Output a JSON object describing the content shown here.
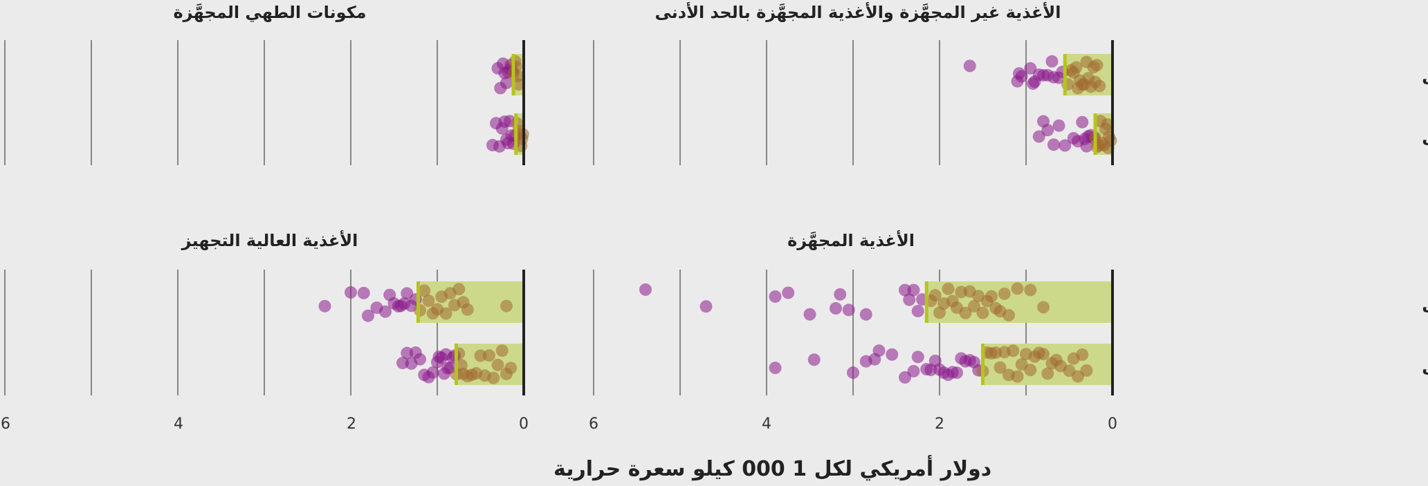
{
  "chart_data": {
    "type": "scatter",
    "x_axis_label": "دولار أمريكي لكل 1 000 كيلو سعرة حرارية",
    "x_ticks": [
      "6",
      "4",
      "2",
      "0"
    ],
    "rows": [
      "البلدان المرتفعة الدخل",
      "البلدان المنخفضة والمتوسطة الدخل"
    ],
    "colors": {
      "bar": "#cdd98a",
      "median": "#b7c41c",
      "point_low": "#8a1a8a",
      "point_high": "#a06a30",
      "zero_line": "#222222",
      "grid": "#222222"
    },
    "panels": [
      {
        "title": "الأغذية غير المجهَّزة والأغذية المجهَّزة بالحد الأدنى",
        "xlim": [
          0,
          6
        ],
        "groups": [
          {
            "row": "البلدان المرتفعة الدخل",
            "median": 0.55,
            "bar_end": 0.0,
            "points": [
              1.65,
              1.1,
              1.05,
              1.08,
              0.95,
              0.92,
              0.9,
              0.85,
              0.8,
              0.75,
              0.7,
              0.68,
              0.62,
              0.58,
              0.52,
              0.48,
              0.45,
              0.42,
              0.4,
              0.38,
              0.35,
              0.33,
              0.3,
              0.28,
              0.25,
              0.22,
              0.2,
              0.18,
              0.15
            ]
          },
          {
            "row": "البلدان المنخفضة والمتوسطة الدخل",
            "median": 0.2,
            "bar_end": 0.0,
            "points": [
              0.85,
              0.8,
              0.75,
              0.68,
              0.62,
              0.55,
              0.45,
              0.4,
              0.35,
              0.32,
              0.3,
              0.28,
              0.25,
              0.22,
              0.2,
              0.18,
              0.16,
              0.14,
              0.12,
              0.1,
              0.08,
              0.06,
              0.05,
              0.04,
              0.02
            ]
          }
        ]
      },
      {
        "title": "مكونات الطهي المجهَّزة",
        "xlim": [
          0,
          6
        ],
        "groups": [
          {
            "row": "البلدان المرتفعة الدخل",
            "median": 0.12,
            "bar_end": 0.0,
            "points": [
              0.3,
              0.27,
              0.24,
              0.22,
              0.2,
              0.18,
              0.16,
              0.15,
              0.13,
              0.12,
              0.1,
              0.09,
              0.07,
              0.06
            ]
          },
          {
            "row": "البلدان المنخفضة والمتوسطة الدخل",
            "median": 0.09,
            "bar_end": 0.0,
            "points": [
              0.36,
              0.32,
              0.28,
              0.25,
              0.22,
              0.2,
              0.18,
              0.16,
              0.14,
              0.12,
              0.1,
              0.08,
              0.06,
              0.05,
              0.03,
              0.02,
              0.01
            ]
          }
        ]
      },
      {
        "title": "الأغذية المجهَّزة",
        "xlim": [
          0,
          6
        ],
        "groups": [
          {
            "row": "البلدان المرتفعة الدخل",
            "median": 2.15,
            "bar_end": 0.0,
            "points": [
              5.4,
              4.7,
              3.9,
              3.75,
              3.5,
              3.2,
              3.15,
              3.05,
              2.85,
              2.4,
              2.35,
              2.3,
              2.25,
              2.2,
              2.1,
              2.05,
              2.0,
              1.95,
              1.9,
              1.85,
              1.8,
              1.75,
              1.7,
              1.65,
              1.6,
              1.55,
              1.5,
              1.45,
              1.4,
              1.35,
              1.3,
              1.25,
              1.2,
              1.1,
              0.95,
              0.8
            ]
          },
          {
            "row": "البلدان المنخفضة والمتوسطة الدخل",
            "median": 1.5,
            "bar_end": 0.0,
            "points": [
              3.9,
              3.45,
              3.0,
              2.85,
              2.75,
              2.7,
              2.55,
              2.4,
              2.3,
              2.25,
              2.15,
              2.1,
              2.05,
              2.0,
              1.95,
              1.9,
              1.85,
              1.8,
              1.75,
              1.7,
              1.65,
              1.6,
              1.55,
              1.5,
              1.45,
              1.4,
              1.35,
              1.3,
              1.25,
              1.2,
              1.15,
              1.1,
              1.05,
              1.0,
              0.95,
              0.9,
              0.85,
              0.8,
              0.75,
              0.7,
              0.65,
              0.6,
              0.5,
              0.45,
              0.4,
              0.35,
              0.3
            ]
          }
        ]
      },
      {
        "title": "الأغذية العالية التجهيز",
        "xlim": [
          0,
          6
        ],
        "groups": [
          {
            "row": "البلدان المرتفعة الدخل",
            "median": 1.22,
            "bar_end": 0.0,
            "points": [
              2.3,
              2.0,
              1.85,
              1.8,
              1.7,
              1.6,
              1.55,
              1.5,
              1.45,
              1.42,
              1.38,
              1.35,
              1.3,
              1.25,
              1.2,
              1.15,
              1.1,
              1.05,
              1.0,
              0.95,
              0.9,
              0.85,
              0.8,
              0.75,
              0.7,
              0.65,
              0.2
            ]
          },
          {
            "row": "البلدان المنخفضة والمتوسطة الدخل",
            "median": 0.78,
            "bar_end": 0.0,
            "points": [
              1.4,
              1.35,
              1.3,
              1.25,
              1.2,
              1.15,
              1.1,
              1.05,
              1.0,
              0.98,
              0.95,
              0.92,
              0.9,
              0.88,
              0.85,
              0.82,
              0.8,
              0.78,
              0.75,
              0.72,
              0.7,
              0.65,
              0.6,
              0.55,
              0.5,
              0.45,
              0.4,
              0.35,
              0.3,
              0.25,
              0.2,
              0.15
            ]
          }
        ]
      }
    ]
  }
}
